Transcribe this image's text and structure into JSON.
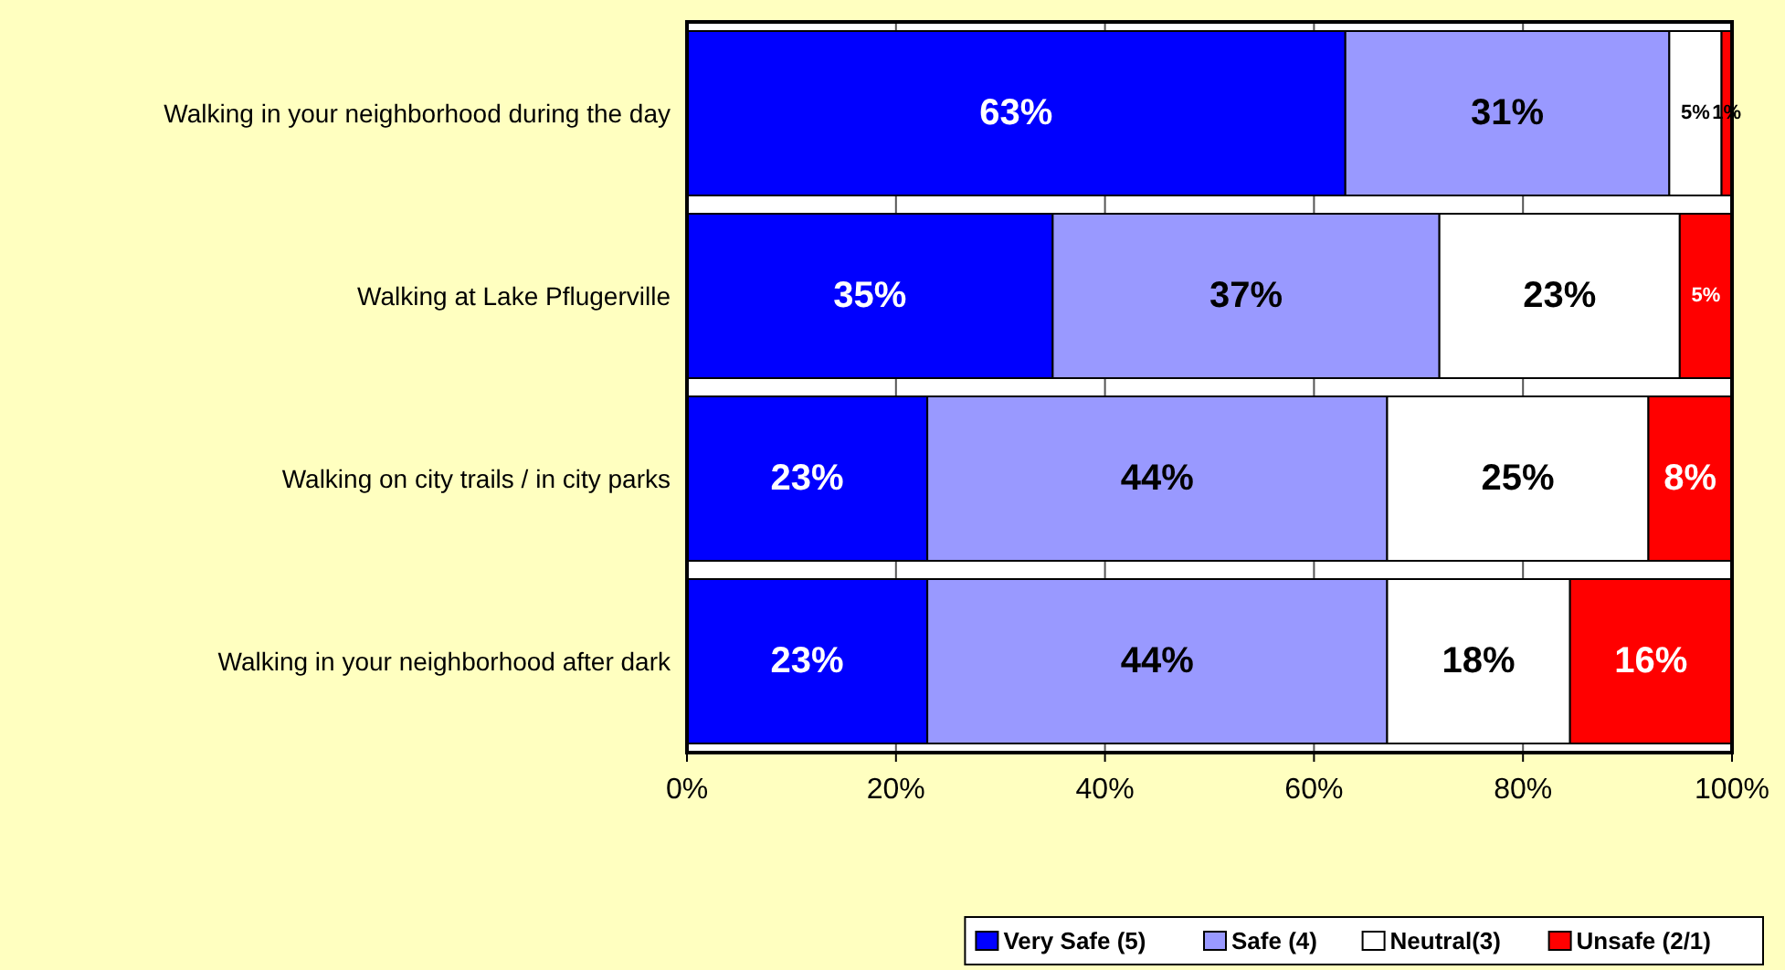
{
  "chart_data": {
    "type": "bar",
    "orientation": "horizontal",
    "stacked": true,
    "categories": [
      "Walking in your neighborhood during the day",
      "Walking at Lake Pflugerville",
      "Walking on city trails / in city parks",
      "Walking in your neighborhood after dark"
    ],
    "series": [
      {
        "name": "Very Safe (5)",
        "color": "#0000ff",
        "values": [
          63,
          35,
          23,
          23
        ],
        "value_labels": [
          "63%",
          "35%",
          "23%",
          "23%"
        ]
      },
      {
        "name": "Safe (4)",
        "color": "#9999ff",
        "values": [
          31,
          37,
          44,
          44
        ],
        "value_labels": [
          "31%",
          "37%",
          "44%",
          "44%"
        ]
      },
      {
        "name": "Neutral(3)",
        "color": "#ffffff",
        "values": [
          5,
          23,
          25,
          17.5
        ],
        "value_labels": [
          "5%",
          "23%",
          "25%",
          "18%"
        ]
      },
      {
        "name": "Unsafe (2/1)",
        "color": "#ff0000",
        "values": [
          1,
          5,
          8,
          15.5
        ],
        "value_labels": [
          "1%",
          "5%",
          "8%",
          "16%"
        ]
      }
    ],
    "xlim": [
      0,
      100
    ],
    "xticks": [
      {
        "value": 0,
        "label": "0%"
      },
      {
        "value": 20,
        "label": "20%"
      },
      {
        "value": 40,
        "label": "40%"
      },
      {
        "value": 60,
        "label": "60%"
      },
      {
        "value": 80,
        "label": "80%"
      },
      {
        "value": 100,
        "label": "100%"
      }
    ],
    "grid": "x",
    "legend": "bottom right"
  }
}
